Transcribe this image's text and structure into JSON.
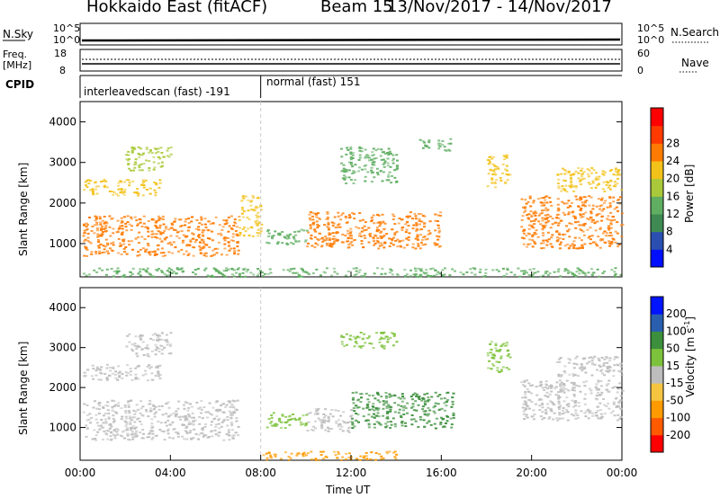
{
  "header": {
    "station": "Hokkaido East (fitACF)",
    "beam": "Beam 15",
    "date_range": "13/Nov/2017 - 14/Nov/2017"
  },
  "strips": {
    "nsky_label": "N.Sky",
    "nsky_ticks": [
      "10^5",
      "10^0"
    ],
    "nsearch_label": "N.Search",
    "freq_label_1": "Freq.",
    "freq_label_2": "[MHz]",
    "freq_ticks": [
      "18",
      "8"
    ],
    "nave_ticks": [
      "60",
      "0"
    ],
    "nave_label": "Nave",
    "cpid_label": "CPID",
    "cpid_segments": [
      {
        "label": "interleavedscan (fast) -191",
        "start_hour": 0
      },
      {
        "label": "normal (fast) 151",
        "start_hour": 8.0
      }
    ]
  },
  "colors": {
    "power_scale": [
      "#0010ff",
      "#2a4fb0",
      "#3f8a52",
      "#5fae62",
      "#a9c93a",
      "#f2c21a",
      "#ff7a00",
      "#ff3a00",
      "#ff0000"
    ],
    "velocity_scale": [
      "#ff0000",
      "#ff5a00",
      "#ff9a00",
      "#f5c542",
      "#bdbdbd",
      "#7cc23a",
      "#3c8f3c",
      "#2a5fb0",
      "#0014ff"
    ]
  },
  "chart_data": [
    {
      "type": "heatmap",
      "name": "power",
      "ylabel": "Slant Range [km]",
      "xlabel": "",
      "x_ticks": [
        "00:00",
        "04:00",
        "08:00",
        "12:00",
        "16:00",
        "20:00",
        "00:00"
      ],
      "y_ticks": [
        1000,
        2000,
        3000,
        4000
      ],
      "xlim_hours": [
        0,
        24
      ],
      "ylim": [
        180,
        4500
      ],
      "colorbar_label": "Power [dB]",
      "colorbar_ticks": [
        4,
        8,
        12,
        16,
        20,
        24,
        28
      ],
      "regions": [
        {
          "t0": 0.1,
          "t1": 7.0,
          "r0": 700,
          "r1": 1700,
          "value": 26
        },
        {
          "t0": 0.1,
          "t1": 3.5,
          "r0": 2200,
          "r1": 2600,
          "value": 22
        },
        {
          "t0": 2.0,
          "t1": 4.0,
          "r0": 2800,
          "r1": 3400,
          "value": 18
        },
        {
          "t0": 7.0,
          "t1": 8.0,
          "r0": 1200,
          "r1": 2200,
          "value": 20
        },
        {
          "t0": 8.2,
          "t1": 10.0,
          "r0": 1000,
          "r1": 1400,
          "value": 12
        },
        {
          "t0": 10.0,
          "t1": 16.0,
          "r0": 900,
          "r1": 1800,
          "value": 24
        },
        {
          "t0": 11.5,
          "t1": 14.0,
          "r0": 2500,
          "r1": 3400,
          "value": 14
        },
        {
          "t0": 15.0,
          "t1": 16.5,
          "r0": 3300,
          "r1": 3600,
          "value": 12
        },
        {
          "t0": 18.0,
          "t1": 19.0,
          "r0": 2400,
          "r1": 3200,
          "value": 22
        },
        {
          "t0": 19.5,
          "t1": 24.0,
          "r0": 900,
          "r1": 2200,
          "value": 24
        },
        {
          "t0": 21.0,
          "t1": 24.0,
          "r0": 2300,
          "r1": 2900,
          "value": 22
        },
        {
          "t0": 0.1,
          "t1": 24.0,
          "r0": 200,
          "r1": 420,
          "value": 12
        }
      ]
    },
    {
      "type": "heatmap",
      "name": "velocity",
      "ylabel": "Slant Range [km]",
      "xlabel": "Time UT",
      "x_ticks": [
        "00:00",
        "04:00",
        "08:00",
        "12:00",
        "16:00",
        "20:00",
        "00:00"
      ],
      "y_ticks": [
        1000,
        2000,
        3000,
        4000
      ],
      "xlim_hours": [
        0,
        24
      ],
      "ylim": [
        180,
        4500
      ],
      "colorbar_label": "Velocity [m s",
      "colorbar_unit_sup": "-1",
      "colorbar_close": "]",
      "colorbar_ticks": [
        -200,
        -100,
        -50,
        -15,
        15,
        50,
        100,
        200
      ],
      "regions": [
        {
          "t0": 0.1,
          "t1": 7.0,
          "r0": 700,
          "r1": 1700,
          "value": 0
        },
        {
          "t0": 0.1,
          "t1": 3.5,
          "r0": 2200,
          "r1": 2600,
          "value": 0
        },
        {
          "t0": 2.0,
          "t1": 4.0,
          "r0": 2800,
          "r1": 3400,
          "value": 0
        },
        {
          "t0": 8.2,
          "t1": 10.0,
          "r0": 1000,
          "r1": 1400,
          "value": 40
        },
        {
          "t0": 10.0,
          "t1": 12.0,
          "r0": 900,
          "r1": 1500,
          "value": 0
        },
        {
          "t0": 12.0,
          "t1": 16.5,
          "r0": 1000,
          "r1": 1900,
          "value": 80
        },
        {
          "t0": 11.5,
          "t1": 14.0,
          "r0": 3000,
          "r1": 3400,
          "value": 40
        },
        {
          "t0": 18.0,
          "t1": 19.0,
          "r0": 2400,
          "r1": 3200,
          "value": 40
        },
        {
          "t0": 19.5,
          "t1": 24.0,
          "r0": 1200,
          "r1": 2200,
          "value": 0
        },
        {
          "t0": 21.0,
          "t1": 24.0,
          "r0": 2300,
          "r1": 2800,
          "value": 0
        },
        {
          "t0": 8.0,
          "t1": 14.0,
          "r0": 200,
          "r1": 420,
          "value": -60
        }
      ]
    }
  ]
}
